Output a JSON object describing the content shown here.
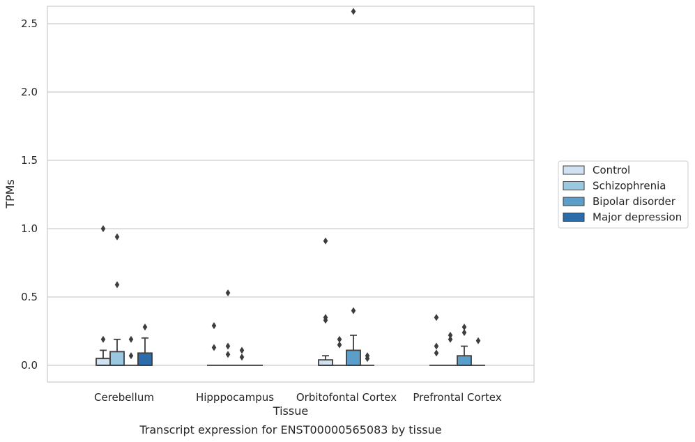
{
  "chart_data": {
    "type": "box",
    "xlabel": "Tissue",
    "ylabel": "TPMs",
    "caption": "Transcript expression for ENST00000565083 by tissue",
    "ylim": [
      -0.13,
      2.73
    ],
    "yticks": [
      0.0,
      0.5,
      1.0,
      1.5,
      2.0,
      2.5
    ],
    "ytick_labels": [
      "0.0",
      "0.5",
      "1.0",
      "1.5",
      "2.0",
      "2.5"
    ],
    "grid": true,
    "legend_position": "right",
    "categories": [
      "Cerebellum",
      "Hipppocampus",
      "Orbitofontal Cortex",
      "Prefrontal Cortex"
    ],
    "series": [
      {
        "name": "Control",
        "color": "#d0e1f2",
        "boxes": [
          {
            "q1": 0.0,
            "median": 0.0,
            "q3": 0.05,
            "whisker_low": 0.0,
            "whisker_high": 0.11,
            "outliers": [
              0.19,
              1.0
            ]
          },
          {
            "q1": 0.0,
            "median": 0.0,
            "q3": 0.0,
            "whisker_low": 0.0,
            "whisker_high": 0.0,
            "outliers": [
              0.13,
              0.29
            ]
          },
          {
            "q1": 0.0,
            "median": 0.0,
            "q3": 0.04,
            "whisker_low": 0.0,
            "whisker_high": 0.07,
            "outliers": [
              0.33,
              0.35,
              0.91
            ]
          },
          {
            "q1": 0.0,
            "median": 0.0,
            "q3": 0.0,
            "whisker_low": 0.0,
            "whisker_high": 0.0,
            "outliers": [
              0.09,
              0.14,
              0.35
            ]
          }
        ]
      },
      {
        "name": "Schizophrenia",
        "color": "#9ac8e0",
        "boxes": [
          {
            "q1": 0.0,
            "median": 0.0,
            "q3": 0.1,
            "whisker_low": 0.0,
            "whisker_high": 0.19,
            "outliers": [
              0.59,
              0.94
            ]
          },
          {
            "q1": 0.0,
            "median": 0.0,
            "q3": 0.0,
            "whisker_low": 0.0,
            "whisker_high": 0.0,
            "outliers": [
              0.08,
              0.14,
              0.53
            ]
          },
          {
            "q1": 0.0,
            "median": 0.0,
            "q3": 0.0,
            "whisker_low": 0.0,
            "whisker_high": 0.0,
            "outliers": [
              0.15,
              0.19
            ]
          },
          {
            "q1": 0.0,
            "median": 0.0,
            "q3": 0.0,
            "whisker_low": 0.0,
            "whisker_high": 0.0,
            "outliers": [
              0.19,
              0.22
            ]
          }
        ]
      },
      {
        "name": "Bipolar disorder",
        "color": "#5a9ec9",
        "boxes": [
          {
            "q1": 0.0,
            "median": 0.0,
            "q3": 0.0,
            "whisker_low": 0.0,
            "whisker_high": 0.0,
            "outliers": [
              0.07,
              0.19
            ]
          },
          {
            "q1": 0.0,
            "median": 0.0,
            "q3": 0.0,
            "whisker_low": 0.0,
            "whisker_high": 0.0,
            "outliers": [
              0.06,
              0.11
            ]
          },
          {
            "q1": 0.0,
            "median": 0.0,
            "q3": 0.11,
            "whisker_low": 0.0,
            "whisker_high": 0.22,
            "outliers": [
              0.4,
              2.59
            ]
          },
          {
            "q1": 0.0,
            "median": 0.0,
            "q3": 0.07,
            "whisker_low": 0.0,
            "whisker_high": 0.14,
            "outliers": [
              0.24,
              0.28
            ]
          }
        ]
      },
      {
        "name": "Major depression",
        "color": "#2b6ca9",
        "boxes": [
          {
            "q1": 0.0,
            "median": 0.0,
            "q3": 0.09,
            "whisker_low": 0.0,
            "whisker_high": 0.2,
            "outliers": [
              0.28
            ]
          },
          {
            "q1": 0.0,
            "median": 0.0,
            "q3": 0.0,
            "whisker_low": 0.0,
            "whisker_high": 0.0,
            "outliers": []
          },
          {
            "q1": 0.0,
            "median": 0.0,
            "q3": 0.0,
            "whisker_low": 0.0,
            "whisker_high": 0.0,
            "outliers": [
              0.05,
              0.07
            ]
          },
          {
            "q1": 0.0,
            "median": 0.0,
            "q3": 0.0,
            "whisker_low": 0.0,
            "whisker_high": 0.0,
            "outliers": [
              0.18
            ]
          }
        ]
      }
    ]
  }
}
